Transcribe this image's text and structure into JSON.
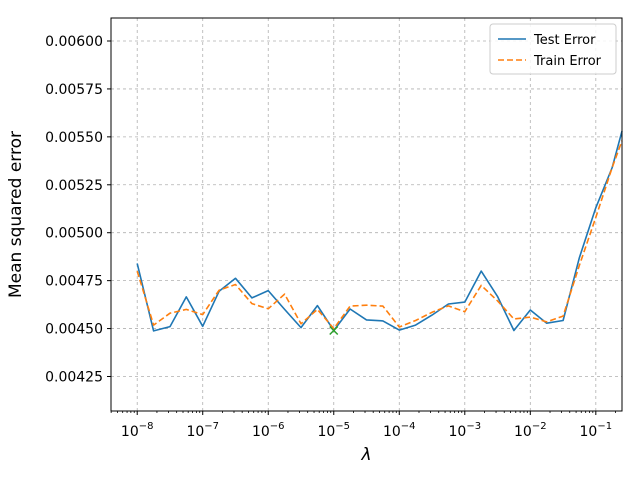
{
  "chart_data": {
    "type": "line",
    "xlabel": "λ",
    "ylabel": "Mean squared error",
    "xscale": "log",
    "xlim": [
      3.98e-09,
      0.251
    ],
    "ylim": [
      0.00407,
      0.00612
    ],
    "grid": true,
    "legend_position": "top-right",
    "x_ticks": [
      {
        "exp": -8,
        "value": 1e-08
      },
      {
        "exp": -7,
        "value": 1e-07
      },
      {
        "exp": -6,
        "value": 1e-06
      },
      {
        "exp": -5,
        "value": 1e-05
      },
      {
        "exp": -4,
        "value": 0.0001
      },
      {
        "exp": -3,
        "value": 0.001
      },
      {
        "exp": -2,
        "value": 0.01
      },
      {
        "exp": -1,
        "value": 0.1
      }
    ],
    "y_ticks": [
      "0.00425",
      "0.00450",
      "0.00475",
      "0.00500",
      "0.00525",
      "0.00550",
      "0.00575",
      "0.00600"
    ],
    "x": [
      1e-08,
      1.778e-08,
      3.162e-08,
      5.623e-08,
      1e-07,
      1.778e-07,
      3.162e-07,
      5.623e-07,
      1e-06,
      1.778e-06,
      3.162e-06,
      5.623e-06,
      1e-05,
      1.778e-05,
      3.162e-05,
      5.623e-05,
      0.0001,
      0.0001778,
      0.0003162,
      0.0005623,
      0.001,
      0.001778,
      0.003162,
      0.005623,
      0.01,
      0.01778,
      0.03162,
      0.05623,
      0.1,
      0.1778,
      0.2512
    ],
    "series": [
      {
        "name": "Test Error",
        "color": "#1f77b4",
        "dash": "solid",
        "values": [
          0.00484,
          0.004488,
          0.00451,
          0.004665,
          0.004512,
          0.004695,
          0.004762,
          0.00466,
          0.004698,
          0.0046,
          0.004505,
          0.00462,
          0.00449,
          0.004602,
          0.004545,
          0.00454,
          0.004492,
          0.004518,
          0.00457,
          0.004628,
          0.004638,
          0.0048,
          0.004668,
          0.00449,
          0.004597,
          0.004528,
          0.004542,
          0.00487,
          0.00513,
          0.00534,
          0.00553
        ]
      },
      {
        "name": "Train Error",
        "color": "#ff7f0e",
        "dash": "dashed",
        "values": [
          0.0048,
          0.004518,
          0.00458,
          0.0046,
          0.004573,
          0.0047,
          0.00473,
          0.00463,
          0.004603,
          0.00468,
          0.004525,
          0.0046,
          0.0045,
          0.004617,
          0.004622,
          0.004617,
          0.004508,
          0.004542,
          0.004585,
          0.004618,
          0.004588,
          0.004725,
          0.004645,
          0.00455,
          0.00456,
          0.004535,
          0.004565,
          0.00483,
          0.00508,
          0.00534,
          0.00548
        ]
      }
    ],
    "marker": {
      "x": 1e-05,
      "y": 0.00449,
      "symbol": "x",
      "color": "#2ca02c"
    }
  }
}
